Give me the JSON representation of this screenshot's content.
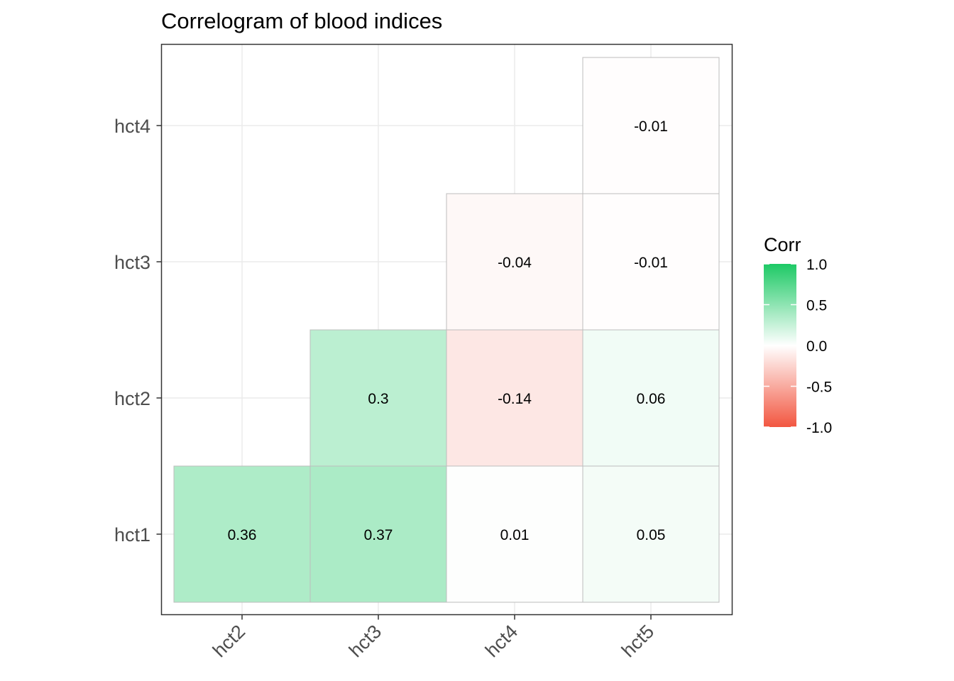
{
  "chart_data": {
    "type": "heatmap",
    "title": "Correlogram of blood indices",
    "x_categories": [
      "hct2",
      "hct3",
      "hct4",
      "hct5"
    ],
    "y_categories": [
      "hct1",
      "hct2",
      "hct3",
      "hct4"
    ],
    "cells": [
      {
        "x": "hct2",
        "y": "hct1",
        "value": 0.36,
        "label": "0.36"
      },
      {
        "x": "hct3",
        "y": "hct1",
        "value": 0.37,
        "label": "0.37"
      },
      {
        "x": "hct4",
        "y": "hct1",
        "value": 0.01,
        "label": "0.01"
      },
      {
        "x": "hct5",
        "y": "hct1",
        "value": 0.05,
        "label": "0.05"
      },
      {
        "x": "hct3",
        "y": "hct2",
        "value": 0.3,
        "label": "0.3"
      },
      {
        "x": "hct4",
        "y": "hct2",
        "value": -0.14,
        "label": "-0.14"
      },
      {
        "x": "hct5",
        "y": "hct2",
        "value": 0.06,
        "label": "0.06"
      },
      {
        "x": "hct4",
        "y": "hct3",
        "value": -0.04,
        "label": "-0.04"
      },
      {
        "x": "hct5",
        "y": "hct3",
        "value": -0.01,
        "label": "-0.01"
      },
      {
        "x": "hct5",
        "y": "hct4",
        "value": -0.01,
        "label": "-0.01"
      }
    ],
    "legend": {
      "title": "Corr",
      "placement": "right",
      "range": [
        -1,
        1
      ],
      "ticks": [
        1.0,
        0.5,
        0.0,
        -0.5,
        -1.0
      ],
      "tick_labels": [
        "1.0",
        "0.5",
        "0.0",
        "-0.5",
        "-1.0"
      ]
    },
    "colors": {
      "high": "#1dc965",
      "mid": "#ffffff",
      "low": "#f25640",
      "cell_border": "#bdbdbd",
      "grid": "#ebebeb",
      "panel_border": "#333333"
    },
    "grid": true
  }
}
